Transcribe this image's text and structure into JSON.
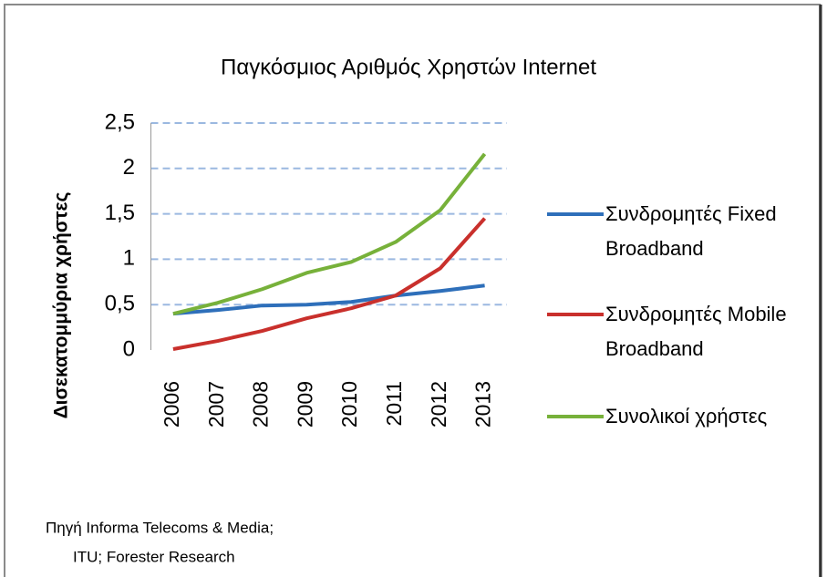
{
  "chart_data": {
    "type": "line",
    "title": "Παγκόσμιος Αριθμός Χρηστών Internet",
    "ylabel": "Δισεκατομμύρια χρήστες",
    "categories": [
      "2006",
      "2007",
      "2008",
      "2009",
      "2010",
      "2011",
      "2012",
      "2013"
    ],
    "series": [
      {
        "name": "Συνδρομητές Fixed Broadband",
        "color": "#2e6fba",
        "values": [
          0.4,
          0.44,
          0.49,
          0.5,
          0.53,
          0.6,
          0.65,
          0.71
        ]
      },
      {
        "name": "Συνδρομητές Mobile Broadband",
        "color": "#c9302c",
        "values": [
          0.01,
          0.1,
          0.21,
          0.35,
          0.46,
          0.6,
          0.9,
          1.45
        ]
      },
      {
        "name": "Συνολικοί χρήστες",
        "color": "#77b13a",
        "values": [
          0.4,
          0.52,
          0.67,
          0.85,
          0.97,
          1.19,
          1.54,
          2.16
        ]
      }
    ],
    "ylim": [
      0,
      2.5
    ],
    "yticks": [
      0,
      {
        "value": 0.5,
        "label": "0,5"
      },
      1,
      {
        "value": 1.5,
        "label": "1,5"
      },
      2,
      {
        "value": 2.5,
        "label": "2,5"
      }
    ],
    "grid": true,
    "legend": "right",
    "source": [
      "Πηγή Informa Telecoms & Media;",
      "ITU; Forester Research"
    ]
  }
}
